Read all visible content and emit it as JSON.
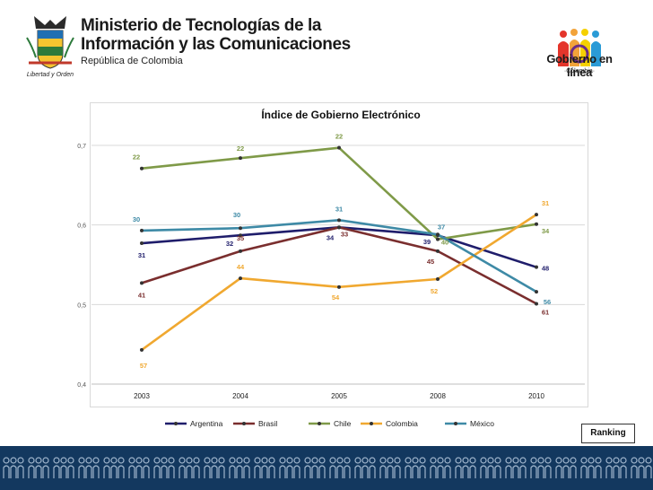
{
  "header": {
    "ministry_line1": "Ministerio de Tecnologías de la",
    "ministry_line2": "Información y las Comunicaciones",
    "ministry_line3": "República de Colombia",
    "coat_motto": "Libertad y Orden",
    "logo_title": "Gobierno en línea",
    "logo_subtitle": "·Colombia·"
  },
  "ranking_label": "Ranking",
  "chart_data": {
    "type": "line",
    "title": "Índice de Gobierno Electrónico",
    "categories": [
      "2003",
      "2004",
      "2005",
      "2008",
      "2010"
    ],
    "ylim": [
      0.4,
      0.7
    ],
    "yticks": [
      "0,4",
      "0,5",
      "0,6",
      "0,7"
    ],
    "ytick_values": [
      0.4,
      0.5,
      0.6,
      0.7
    ],
    "legend_position": "bottom",
    "series": [
      {
        "name": "Argentina",
        "color": "#1f1d6b",
        "values": [
          0.577,
          0.587,
          0.597,
          0.587,
          0.547
        ],
        "ranks": [
          "31",
          "32",
          "34",
          "39",
          "48"
        ]
      },
      {
        "name": "Brasil",
        "color": "#7a2e2e",
        "values": [
          0.527,
          0.567,
          0.597,
          0.567,
          0.501
        ],
        "ranks": [
          "41",
          "35",
          "33",
          "45",
          "61"
        ]
      },
      {
        "name": "Chile",
        "color": "#7f9a48",
        "values": [
          0.671,
          0.684,
          0.697,
          0.582,
          0.601
        ],
        "ranks": [
          "22",
          "22",
          "22",
          "40",
          "34"
        ]
      },
      {
        "name": "Colombia",
        "color": "#f0a830",
        "values": [
          0.443,
          0.533,
          0.522,
          0.532,
          0.613
        ],
        "ranks": [
          "57",
          "44",
          "54",
          "52",
          "31"
        ]
      },
      {
        "name": "México",
        "color": "#3e8aa6",
        "values": [
          0.593,
          0.596,
          0.606,
          0.588,
          0.516
        ],
        "ranks": [
          "30",
          "30",
          "31",
          "37",
          "56"
        ]
      }
    ]
  }
}
